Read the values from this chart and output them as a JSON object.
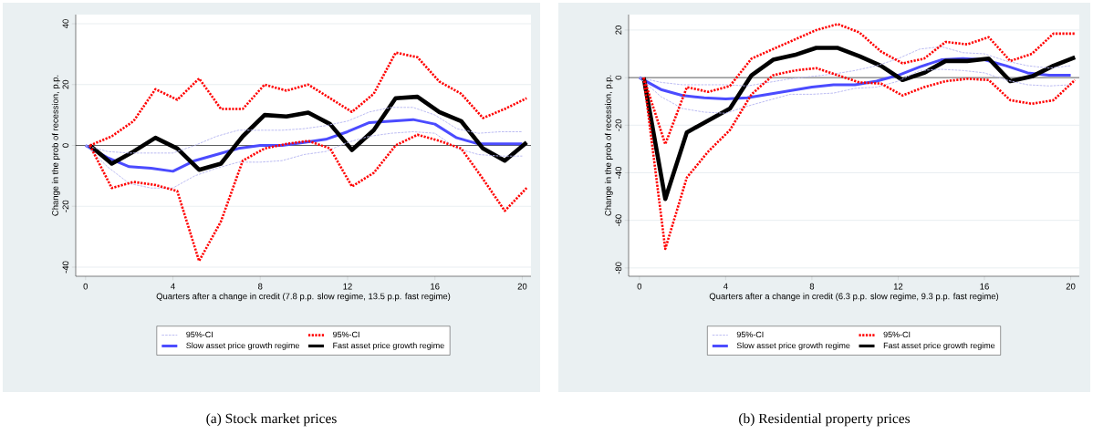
{
  "chart_data": [
    {
      "type": "line",
      "title": "(a) Stock market prices",
      "xlabel": "Quarters after a change in credit (7.8 p.p. slow regime, 13.5 p.p. fast regime)",
      "ylabel": "Change in the prob of recession, p.p.",
      "x": [
        0,
        1,
        2,
        3,
        4,
        5,
        6,
        7,
        8,
        9,
        10,
        11,
        12,
        13,
        14,
        15,
        16,
        17,
        18,
        19,
        20
      ],
      "xlim": [
        -0.45,
        20.4
      ],
      "xticks": [
        0,
        4,
        8,
        12,
        16,
        20
      ],
      "ylim": [
        -43,
        43
      ],
      "yticks": [
        -40,
        -20,
        0,
        20,
        40
      ],
      "grid": "y",
      "legend": "bottom",
      "ref_lines": [
        {
          "axis": "y",
          "value": 0,
          "color": "#000000"
        }
      ],
      "series": [
        {
          "name": "95%-CI",
          "color": "#b4b4f0",
          "line_style": "dashed",
          "values": [
            0,
            -2,
            -2.5,
            -2.5,
            -2.5,
            0,
            3,
            5,
            5,
            5,
            5.5,
            6.5,
            8,
            11,
            12.5,
            12.5,
            10,
            5.5,
            4,
            4.5,
            4.5
          ]
        },
        {
          "color": "#b4b4f0",
          "line_style": "dashed",
          "values": [
            0,
            -7,
            -12.5,
            -14,
            -14,
            -10,
            -7.5,
            -5.5,
            -5.5,
            -5,
            -3,
            -2,
            1,
            3,
            4,
            4.5,
            4,
            -1,
            -3,
            -3.5,
            -3.5
          ]
        },
        {
          "name": "95%-CI",
          "color": "#ff0000",
          "line_style": "dotted",
          "x": [
            0.2,
            1.2,
            2.2,
            3.2,
            4.2,
            5.2,
            6.2,
            7.2,
            8.2,
            9.2,
            10.2,
            11.2,
            12.2,
            13.2,
            14.2,
            15.2,
            16.2,
            17.2,
            18.2,
            19.2,
            20.2
          ],
          "values": [
            0,
            3,
            8,
            18.5,
            15,
            22,
            12,
            12,
            20,
            18,
            20,
            15.5,
            11,
            17,
            30.5,
            29,
            21,
            17,
            9,
            12,
            15.5
          ]
        },
        {
          "color": "#ff0000",
          "line_style": "dotted",
          "x": [
            0.2,
            1.2,
            2.2,
            3.2,
            4.2,
            5.2,
            6.2,
            7.2,
            8.2,
            9.2,
            10.2,
            11.2,
            12.2,
            13.2,
            14.2,
            15.2,
            16.2,
            17.2,
            18.2,
            19.2,
            20.2
          ],
          "values": [
            0,
            -14,
            -12,
            -13,
            -15,
            -38,
            -25,
            -5,
            -1,
            0.5,
            1.5,
            -1,
            -13.5,
            -9,
            0,
            3.5,
            1.5,
            -1,
            -11,
            -21.5,
            -14
          ]
        },
        {
          "name": "Slow asset price growth regime",
          "color": "#4b4bff",
          "line_style": "solid",
          "values": [
            0,
            -4,
            -7,
            -7.5,
            -8.5,
            -5,
            -3,
            -1,
            0,
            0,
            1,
            2,
            4.5,
            7.5,
            8,
            8.5,
            7,
            2.5,
            0.5,
            0.5,
            0.5
          ]
        },
        {
          "name": "Fast asset price growth regime",
          "color": "#000000",
          "line_style": "solid",
          "x": [
            0.2,
            1.2,
            2.2,
            3.2,
            4.2,
            5.2,
            6.2,
            7.2,
            8.2,
            9.2,
            10.2,
            11.2,
            12.2,
            13.2,
            14.2,
            15.2,
            16.2,
            17.2,
            18.2,
            19.2,
            20.2
          ],
          "values": [
            0,
            -6,
            -2,
            2.5,
            -1,
            -8,
            -6,
            3,
            10,
            9.5,
            10.8,
            7,
            -1.5,
            5,
            15.5,
            16,
            11,
            8,
            -1,
            -5,
            1
          ]
        }
      ]
    },
    {
      "type": "line",
      "title": "(b) Residential property prices",
      "xlabel": "Quarters after a change in credit (6.3 p.p. slow regime, 9.3 p.p. fast regime)",
      "ylabel": "Change in the prob of recession, p.p.",
      "x": [
        0,
        1,
        2,
        3,
        4,
        5,
        6,
        7,
        8,
        9,
        10,
        11,
        12,
        13,
        14,
        15,
        16,
        17,
        18,
        19,
        20
      ],
      "xlim": [
        -0.5,
        20.4
      ],
      "xticks": [
        0,
        4,
        8,
        12,
        16,
        20
      ],
      "ylim": [
        -83.5,
        26.5
      ],
      "yticks": [
        -80,
        -60,
        -40,
        -20,
        0,
        20
      ],
      "grid": "y",
      "legend": "bottom",
      "ref_lines": [
        {
          "axis": "y",
          "value": 0,
          "color": "#000000"
        }
      ],
      "series": [
        {
          "name": "95%-CI",
          "color": "#b4b4f0",
          "line_style": "dashed",
          "values": [
            0,
            -2,
            -3,
            -3,
            -3,
            -3.5,
            -2,
            -0.5,
            0.5,
            1.5,
            3,
            5,
            8,
            12,
            13,
            10.5,
            10,
            7,
            5,
            4,
            5
          ]
        },
        {
          "color": "#b4b4f0",
          "line_style": "dashed",
          "values": [
            0,
            -8,
            -13,
            -14.5,
            -15,
            -12,
            -9.5,
            -7,
            -7,
            -6.5,
            -4.5,
            -4,
            -1.5,
            3,
            3.5,
            3,
            2,
            -1,
            -3,
            -3.5,
            -3
          ]
        },
        {
          "name": "95%-CI",
          "color": "#ff0000",
          "line_style": "dotted",
          "x": [
            0.2,
            1.2,
            2.2,
            3.2,
            4.2,
            5.2,
            6.2,
            7.2,
            8.2,
            9.2,
            10.2,
            11.2,
            12.2,
            13.2,
            14.2,
            15.2,
            16.2,
            17.2,
            18.2,
            19.2,
            20.2
          ],
          "values": [
            0,
            -28,
            -4,
            -6,
            -3.5,
            8,
            12,
            16,
            20,
            22.5,
            19,
            11,
            6,
            8,
            15,
            14,
            17,
            7,
            10,
            18.5,
            18.5
          ]
        },
        {
          "color": "#ff0000",
          "line_style": "dotted",
          "x": [
            0.2,
            1.2,
            2.2,
            3.2,
            4.2,
            5.2,
            6.2,
            7.2,
            8.2,
            9.2,
            10.2,
            11.2,
            12.2,
            13.2,
            14.2,
            15.2,
            16.2,
            17.2,
            18.2,
            19.2,
            20.2
          ],
          "values": [
            0,
            -72,
            -42,
            -31,
            -22,
            -7,
            1,
            3,
            4,
            1,
            -2,
            -2.5,
            -7.5,
            -4,
            -1.5,
            -0.5,
            -1,
            -9.5,
            -11,
            -9.5,
            -1
          ]
        },
        {
          "name": "Slow asset price growth regime",
          "color": "#4b4bff",
          "line_style": "solid",
          "values": [
            0,
            -5,
            -7.5,
            -8.5,
            -9,
            -8.5,
            -7,
            -5.5,
            -4,
            -3,
            -3,
            -1.5,
            1,
            4.5,
            7.5,
            8,
            7.5,
            5,
            2,
            1,
            1
          ]
        },
        {
          "name": "Fast asset price growth regime",
          "color": "#000000",
          "line_style": "solid",
          "x": [
            0.2,
            1.2,
            2.2,
            3.2,
            4.2,
            5.2,
            6.2,
            7.2,
            8.2,
            9.2,
            10.2,
            11.2,
            12.2,
            13.2,
            14.2,
            15.2,
            16.2,
            17.2,
            18.2,
            19.2,
            20.2
          ],
          "values": [
            0,
            -51,
            -23,
            -18,
            -13,
            1,
            7.5,
            9.5,
            12.5,
            12.5,
            9,
            5,
            -1,
            2,
            7,
            7,
            8,
            -1.5,
            0.5,
            5,
            8.5
          ]
        }
      ]
    }
  ]
}
